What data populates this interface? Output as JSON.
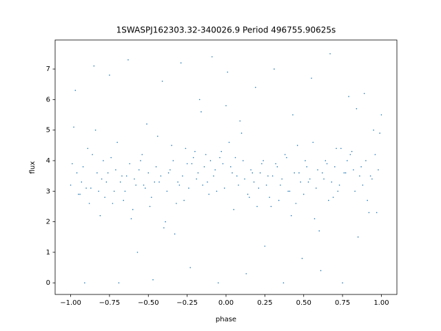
{
  "chart_data": {
    "type": "scatter",
    "title": "1SWASPJ162303.32-340026.9 Period 496755.90625s",
    "xlabel": "phase",
    "ylabel": "flux",
    "color": "#1f77b4",
    "xlim": [
      -1.1,
      1.1
    ],
    "ylim": [
      -0.38,
      7.95
    ],
    "xticks": [
      {
        "value": -1,
        "label": "−1.00"
      },
      {
        "value": -0.75,
        "label": "−0.75"
      },
      {
        "value": -0.5,
        "label": "−0.50"
      },
      {
        "value": -0.25,
        "label": "−0.25"
      },
      {
        "value": 0,
        "label": "0.00"
      },
      {
        "value": 0.25,
        "label": "0.25"
      },
      {
        "value": 0.5,
        "label": "0.50"
      },
      {
        "value": 0.75,
        "label": "0.75"
      },
      {
        "value": 1,
        "label": "1.00"
      }
    ],
    "yticks": [
      0,
      1,
      2,
      3,
      4,
      5,
      6,
      7
    ],
    "x": [
      -1.0,
      -0.98,
      -0.96,
      -0.94,
      -0.92,
      -0.9,
      -0.88,
      -0.86,
      -0.84,
      -0.82,
      -0.8,
      -0.78,
      -0.76,
      -0.74,
      -0.72,
      -0.7,
      -0.68,
      -0.66,
      -0.64,
      -0.62,
      -0.6,
      -0.58,
      -0.56,
      -0.54,
      -0.52,
      -0.5,
      -0.48,
      -0.46,
      -0.44,
      -0.42,
      -0.4,
      -0.38,
      -0.36,
      -0.34,
      -0.32,
      -0.3,
      -0.28,
      -0.26,
      -0.24,
      -0.22,
      -0.2,
      -0.18,
      -0.16,
      -0.14,
      -0.12,
      -0.1,
      -0.08,
      -0.06,
      -0.04,
      -0.02,
      0.0,
      0.02,
      0.04,
      0.06,
      0.08,
      0.1,
      0.12,
      0.14,
      0.16,
      0.18,
      0.2,
      0.22,
      0.24,
      0.26,
      0.28,
      0.3,
      0.32,
      0.34,
      0.36,
      0.38,
      0.4,
      0.42,
      0.44,
      0.46,
      0.48,
      0.5,
      0.52,
      0.54,
      0.56,
      0.58,
      0.6,
      0.62,
      0.64,
      0.66,
      0.68,
      0.7,
      0.72,
      0.74,
      0.76,
      0.78,
      0.8,
      0.82,
      0.84,
      0.86,
      0.88,
      0.9,
      0.92,
      0.94,
      0.96,
      0.98,
      1.0,
      -0.99,
      -0.97,
      -0.95,
      -0.93,
      -0.91,
      -0.89,
      -0.87,
      -0.85,
      -0.83,
      -0.81,
      -0.79,
      -0.77,
      -0.75,
      -0.73,
      -0.71,
      -0.69,
      -0.67,
      -0.65,
      -0.63,
      -0.61,
      -0.59,
      -0.57,
      -0.55,
      -0.53,
      -0.51,
      -0.49,
      -0.47,
      -0.45,
      -0.43,
      -0.41,
      -0.39,
      -0.37,
      -0.35,
      -0.33,
      -0.31,
      -0.29,
      -0.27,
      -0.25,
      -0.23,
      -0.21,
      -0.19,
      -0.17,
      -0.15,
      -0.13,
      -0.11,
      -0.09,
      -0.07,
      -0.05,
      -0.03,
      -0.01,
      0.01,
      0.03,
      0.05,
      0.07,
      0.09,
      0.11,
      0.13,
      0.15,
      0.17,
      0.19,
      0.21,
      0.23,
      0.25,
      0.27,
      0.29,
      0.31,
      0.33,
      0.35,
      0.37,
      0.39,
      0.41,
      0.43,
      0.45,
      0.47,
      0.49,
      0.51,
      0.53,
      0.55,
      0.57,
      0.59,
      0.61,
      0.63,
      0.65,
      0.67,
      0.69,
      0.71,
      0.73,
      0.75,
      0.77,
      0.79,
      0.81,
      0.83,
      0.85,
      0.87,
      0.89,
      0.91,
      0.93,
      0.95,
      0.97,
      0.99
    ],
    "values": [
      3.2,
      5.1,
      3.6,
      2.9,
      3.8,
      3.1,
      2.6,
      4.2,
      5.0,
      3.0,
      3.4,
      2.8,
      3.6,
      4.1,
      3.0,
      4.6,
      3.3,
      2.7,
      3.5,
      3.9,
      2.4,
      3.2,
      3.7,
      4.2,
      3.1,
      3.6,
      2.8,
      3.3,
      4.8,
      3.5,
      1.8,
      3.0,
      3.7,
      4.0,
      2.6,
      3.2,
      3.5,
      4.4,
      3.1,
      3.9,
      4.3,
      3.6,
      5.6,
      3.8,
      3.3,
      4.0,
      3.5,
      3.0,
      4.1,
      3.9,
      5.8,
      4.6,
      3.6,
      4.1,
      3.2,
      4.9,
      3.4,
      2.9,
      3.7,
      3.3,
      2.5,
      3.6,
      4.0,
      3.2,
      2.8,
      3.5,
      3.9,
      2.7,
      3.4,
      4.2,
      3.0,
      2.2,
      3.6,
      4.5,
      3.3,
      2.9,
      3.8,
      3.4,
      4.6,
      3.1,
      1.7,
      3.6,
      4.0,
      2.7,
      3.3,
      3.8,
      3.0,
      4.4,
      3.6,
      4.0,
      4.2,
      3.7,
      5.7,
      3.5,
      3.2,
      4.0,
      2.3,
      3.4,
      4.2,
      3.7,
      5.5,
      3.9,
      6.3,
      2.9,
      3.3,
      0.0,
      4.4,
      3.1,
      7.1,
      3.6,
      2.2,
      4.0,
      3.3,
      6.8,
      2.6,
      3.7,
      0.0,
      3.5,
      3.0,
      7.3,
      2.1,
      3.4,
      1.0,
      4.0,
      3.2,
      5.2,
      2.5,
      0.1,
      3.8,
      3.3,
      6.6,
      2.0,
      3.6,
      4.5,
      1.6,
      3.3,
      7.2,
      2.7,
      3.9,
      0.5,
      4.1,
      3.4,
      6.0,
      3.2,
      4.2,
      2.9,
      7.4,
      3.7,
      0.0,
      4.3,
      3.1,
      6.9,
      3.8,
      2.4,
      3.5,
      5.3,
      4.0,
      0.3,
      2.8,
      3.6,
      6.4,
      3.1,
      3.9,
      1.2,
      3.5,
      2.5,
      7.0,
      3.8,
      3.2,
      0.0,
      4.1,
      3.0,
      5.5,
      2.6,
      3.6,
      0.8,
      4.0,
      3.3,
      6.7,
      2.1,
      3.7,
      0.4,
      3.4,
      3.9,
      7.5,
      2.8,
      4.4,
      3.2,
      0.0,
      3.6,
      6.1,
      4.3,
      3.0,
      1.5,
      3.8,
      6.2,
      2.7,
      3.5,
      5.0,
      2.3,
      4.9
    ]
  }
}
